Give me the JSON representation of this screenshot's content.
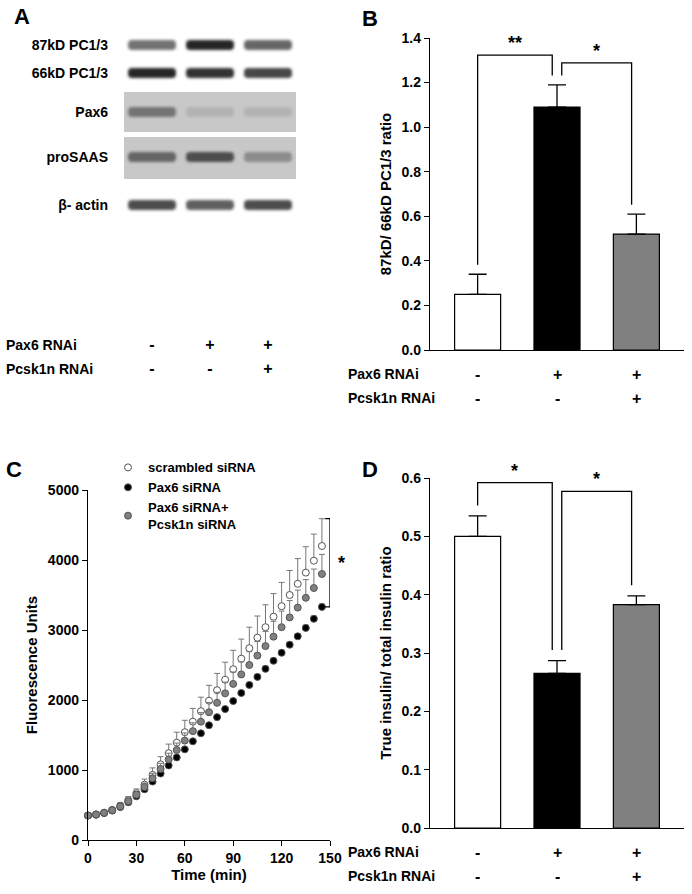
{
  "blot": {
    "title": "A",
    "bands": [
      "87kD PC1/3",
      "66kD PC1/3",
      "Pax6",
      "proSAAS",
      "β- actin"
    ],
    "conditions": [
      {
        "label": "Pax6 RNAi",
        "values": [
          "-",
          "+",
          "+"
        ]
      },
      {
        "label": "Pcsk1n RNAi",
        "values": [
          "-",
          "-",
          "+"
        ]
      }
    ]
  },
  "chart_data": [
    {
      "type": "bar",
      "title": "B",
      "categories": [
        null,
        null,
        null
      ],
      "values": [
        0.25,
        1.09,
        0.52
      ],
      "errors": [
        0.09,
        0.1,
        0.09
      ],
      "colors": [
        "#ffffff",
        "#000000",
        "#808080"
      ],
      "y_label": "87kD/ 66kD PC1/3 ratio",
      "ylim": [
        0,
        1.4
      ],
      "yticks": [
        {
          "value": 0,
          "label": "0.0"
        },
        0.2,
        0.4,
        0.6,
        0.8,
        {
          "value": 1,
          "label": "1.0"
        },
        1.2,
        1.4
      ],
      "grid": false,
      "tick_labels": "y",
      "conditions": [
        {
          "label": "Pax6 RNAi",
          "values": [
            "-",
            "+",
            "+"
          ]
        },
        {
          "label": "Pcsk1n RNAi",
          "values": [
            "-",
            "-",
            "+"
          ]
        }
      ],
      "significance": [
        {
          "between": [
            0,
            1
          ],
          "text": "**"
        },
        {
          "between": [
            1,
            2
          ],
          "text": "*"
        }
      ]
    },
    {
      "type": "scatter",
      "title": "C",
      "x": [
        0,
        5,
        10,
        15,
        20,
        25,
        30,
        35,
        40,
        45,
        50,
        55,
        60,
        65,
        70,
        75,
        80,
        85,
        90,
        95,
        100,
        105,
        110,
        115,
        120,
        125,
        130,
        135,
        140,
        145
      ],
      "series": [
        {
          "name": "scrambled siRNA",
          "color": "#ffffff",
          "values": [
            350,
            365,
            390,
            430,
            490,
            570,
            670,
            790,
            930,
            1080,
            1240,
            1390,
            1540,
            1690,
            1840,
            1990,
            2140,
            2290,
            2440,
            2590,
            2740,
            2890,
            3040,
            3190,
            3340,
            3500,
            3660,
            3820,
            3990,
            4200
          ],
          "errors": [
            20,
            20,
            25,
            30,
            40,
            50,
            60,
            80,
            100,
            110,
            130,
            150,
            170,
            190,
            200,
            220,
            240,
            250,
            270,
            280,
            300,
            310,
            320,
            330,
            340,
            350,
            360,
            370,
            380,
            390
          ]
        },
        {
          "name": "Pax6 siRNA",
          "color": "#000000",
          "values": [
            350,
            362,
            385,
            420,
            470,
            540,
            625,
            725,
            835,
            950,
            1065,
            1180,
            1295,
            1410,
            1525,
            1640,
            1755,
            1870,
            1985,
            2100,
            2215,
            2330,
            2445,
            2560,
            2675,
            2790,
            2910,
            3030,
            3160,
            3330
          ],
          "errors": [
            10,
            10,
            10,
            12,
            12,
            15,
            15,
            15,
            20,
            20,
            20,
            20,
            25,
            25,
            25,
            25,
            30,
            30,
            30,
            30,
            30,
            35,
            35,
            35,
            35,
            35,
            40,
            40,
            40,
            40
          ]
        },
        {
          "name": "Pax6 siRNA+\nPcsk1n siRNA",
          "color": "#808080",
          "values": [
            350,
            364,
            388,
            425,
            480,
            555,
            648,
            758,
            883,
            1015,
            1150,
            1285,
            1420,
            1555,
            1690,
            1825,
            1960,
            2095,
            2230,
            2365,
            2500,
            2635,
            2770,
            2905,
            3040,
            3180,
            3320,
            3460,
            3600,
            3800
          ],
          "errors": [
            15,
            15,
            20,
            20,
            30,
            35,
            45,
            55,
            70,
            80,
            90,
            100,
            110,
            120,
            130,
            140,
            150,
            160,
            170,
            180,
            190,
            200,
            210,
            220,
            230,
            240,
            250,
            260,
            270,
            280
          ]
        }
      ],
      "x_label": "Time (min)",
      "y_label": "Fluorescence Units",
      "xlim": [
        0,
        150
      ],
      "xticks": [
        0,
        30,
        60,
        90,
        120,
        150
      ],
      "ylim": [
        0,
        5000
      ],
      "yticks": [
        0,
        1000,
        2000,
        3000,
        4000,
        5000
      ],
      "grid": false,
      "legend": "upper left",
      "marker": "circle",
      "significance": [
        {
          "between": [
            "scrambled siRNA",
            "Pax6 siRNA"
          ],
          "text": "*"
        }
      ]
    },
    {
      "type": "bar",
      "title": "D",
      "categories": [
        null,
        null,
        null
      ],
      "values": [
        0.5,
        0.265,
        0.383
      ],
      "errors": [
        0.035,
        0.022,
        0.015
      ],
      "colors": [
        "#ffffff",
        "#000000",
        "#808080"
      ],
      "y_label": "True insulin/ total insulin ratio",
      "ylim": [
        0,
        0.6
      ],
      "yticks": [
        {
          "value": 0,
          "label": "0.0"
        },
        0.1,
        0.2,
        0.3,
        0.4,
        0.5,
        0.6
      ],
      "grid": false,
      "tick_labels": "y",
      "conditions": [
        {
          "label": "Pax6 RNAi",
          "values": [
            "-",
            "+",
            "+"
          ]
        },
        {
          "label": "Pcsk1n RNAi",
          "values": [
            "-",
            "-",
            "+"
          ]
        }
      ],
      "significance": [
        {
          "between": [
            0,
            1
          ],
          "text": "*"
        },
        {
          "between": [
            1,
            2
          ],
          "text": "*"
        }
      ]
    }
  ]
}
